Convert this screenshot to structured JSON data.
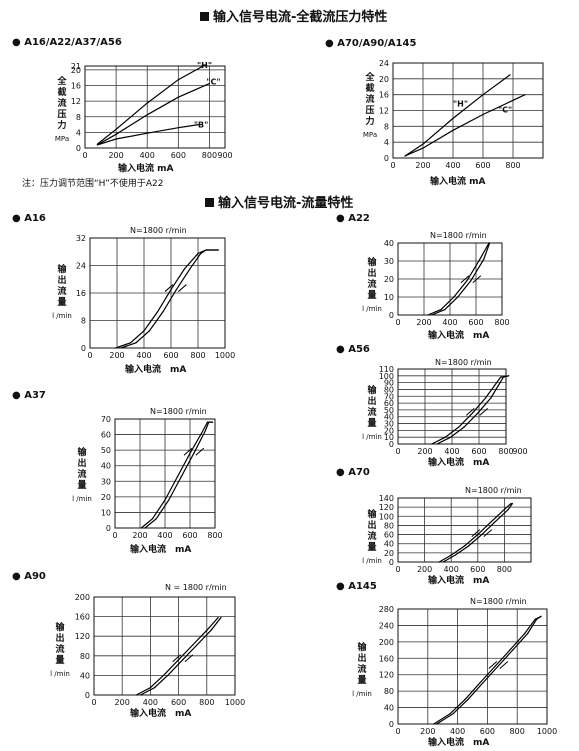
{
  "pressure_section": {
    "title": "输入信号电流-全截流压力特性"
  },
  "flow_section": {
    "title": "输入信号电流-流量特性"
  },
  "pressure_note": "注：压力调节范围“H”不使用于A22",
  "chart_data": [
    {
      "id": "p1",
      "type": "line",
      "title": "A16/A22/A37/A56",
      "ylabel_chars": [
        "全",
        "截",
        "流",
        "压",
        "力"
      ],
      "ylabel_unit": "MPa",
      "xlabel": "输入电流 mA",
      "xlim": [
        0,
        900
      ],
      "ylim": [
        0,
        21
      ],
      "x_ticks": [
        0,
        200,
        400,
        600,
        800,
        900
      ],
      "y_ticks": [
        0,
        4,
        8,
        12,
        16,
        20,
        21
      ],
      "grid": true,
      "series": [
        {
          "name": "\"H\"",
          "x": [
            80,
            200,
            400,
            600,
            760
          ],
          "y": [
            1,
            4.8,
            11.5,
            17.5,
            21
          ]
        },
        {
          "name": "\"C\"",
          "x": [
            80,
            200,
            400,
            600,
            800
          ],
          "y": [
            0.8,
            3.5,
            8.5,
            13,
            16.5
          ]
        },
        {
          "name": "\"B\"",
          "x": [
            80,
            200,
            400,
            600,
            730
          ],
          "y": [
            0.8,
            2.3,
            3.8,
            5.2,
            6
          ]
        }
      ]
    },
    {
      "id": "p2",
      "type": "line",
      "title": "A70/A90/A145",
      "ylabel_chars": [
        "全",
        "截",
        "流",
        "压",
        "力"
      ],
      "ylabel_unit": "MPa",
      "xlabel": "输入电流 mA",
      "xlim": [
        0,
        1000
      ],
      "ylim": [
        0,
        24
      ],
      "x_ticks": [
        0,
        200,
        400,
        600,
        800
      ],
      "y_ticks": [
        0,
        4,
        8,
        12,
        16,
        20,
        24
      ],
      "grid": true,
      "series": [
        {
          "name": "\"H\"",
          "x": [
            80,
            200,
            400,
            600,
            780
          ],
          "y": [
            0.5,
            3.5,
            10,
            16,
            21
          ]
        },
        {
          "name": "\"C\"",
          "x": [
            80,
            200,
            400,
            600,
            880
          ],
          "y": [
            0.5,
            2.5,
            7,
            11,
            16
          ]
        }
      ]
    },
    {
      "id": "f1",
      "type": "line",
      "title": "A16",
      "speed": "N=1800 r/min",
      "ylabel_chars": [
        "输",
        "出",
        "流",
        "量"
      ],
      "ylabel_unit": "l /min",
      "xlabel": "输入电流　mA",
      "xlim": [
        0,
        1000
      ],
      "ylim": [
        0,
        32
      ],
      "x_ticks": [
        0,
        200,
        400,
        600,
        800,
        1000
      ],
      "y_ticks": [
        0,
        8,
        16,
        24,
        32
      ],
      "grid": true,
      "series": [
        {
          "name": "",
          "x": [
            190,
            300,
            400,
            500,
            600,
            700,
            800,
            860,
            950
          ],
          "y": [
            0,
            1.5,
            5,
            10.5,
            17,
            23,
            27.5,
            28.5,
            28.5
          ]
        },
        {
          "name": "",
          "x": [
            230,
            340,
            440,
            540,
            640,
            740,
            820,
            860,
            950
          ],
          "y": [
            0,
            1.5,
            5,
            10.5,
            17,
            23,
            27.5,
            28.5,
            28.5
          ]
        }
      ]
    },
    {
      "id": "f2",
      "type": "line",
      "title": "A22",
      "speed": "N=1800 r/min",
      "ylabel_chars": [
        "输",
        "出",
        "流",
        "量"
      ],
      "ylabel_unit": "l /min",
      "xlabel": "输入电流　mA",
      "xlim": [
        0,
        800
      ],
      "ylim": [
        0,
        40
      ],
      "x_ticks": [
        0,
        200,
        400,
        600,
        800
      ],
      "y_ticks": [
        0,
        10,
        20,
        30,
        40
      ],
      "grid": true,
      "series": [
        {
          "name": "",
          "x": [
            230,
            330,
            430,
            530,
            630,
            700
          ],
          "y": [
            0,
            3,
            10,
            19,
            31,
            40
          ]
        },
        {
          "name": "",
          "x": [
            260,
            360,
            460,
            560,
            660,
            705
          ],
          "y": [
            0,
            3,
            10,
            19,
            31,
            40
          ]
        }
      ]
    },
    {
      "id": "f3",
      "type": "line",
      "title": "A56",
      "speed": "N=1800 r/min",
      "ylabel_chars": [
        "输",
        "出",
        "流",
        "量"
      ],
      "ylabel_unit": "l /min",
      "xlabel": "输入电流　mA",
      "xlim": [
        0,
        800
      ],
      "ylim": [
        0,
        110
      ],
      "x_ticks": [
        0,
        200,
        400,
        600,
        800,
        900
      ],
      "y_ticks": [
        0,
        10,
        20,
        30,
        40,
        50,
        60,
        70,
        80,
        90,
        100,
        110
      ],
      "grid": true,
      "series": [
        {
          "name": "",
          "x": [
            250,
            350,
            450,
            550,
            650,
            760,
            820
          ],
          "y": [
            0,
            10,
            25,
            45,
            68,
            98,
            100
          ]
        },
        {
          "name": "",
          "x": [
            290,
            390,
            490,
            590,
            690,
            780,
            820
          ],
          "y": [
            0,
            10,
            25,
            45,
            68,
            98,
            100
          ]
        }
      ]
    },
    {
      "id": "f4",
      "type": "line",
      "title": "A37",
      "speed": "N=1800 r/min",
      "ylabel_chars": [
        "输",
        "出",
        "流",
        "量"
      ],
      "ylabel_unit": "l /min",
      "xlabel": "输入电流　mA",
      "xlim": [
        0,
        800
      ],
      "ylim": [
        0,
        70
      ],
      "x_ticks": [
        0,
        200,
        400,
        600,
        800
      ],
      "y_ticks": [
        0,
        10,
        20,
        30,
        40,
        50,
        60,
        70
      ],
      "grid": true,
      "series": [
        {
          "name": "",
          "x": [
            210,
            300,
            400,
            500,
            600,
            700,
            740,
            780
          ],
          "y": [
            0,
            6,
            18,
            33,
            48,
            62,
            68,
            68
          ]
        },
        {
          "name": "",
          "x": [
            240,
            330,
            430,
            530,
            630,
            720,
            750,
            780
          ],
          "y": [
            0,
            6,
            18,
            33,
            48,
            62,
            68,
            68
          ]
        }
      ]
    },
    {
      "id": "f5",
      "type": "line",
      "title": "A70",
      "speed": "N=1800 r/min",
      "ylabel_chars": [
        "输",
        "出",
        "流",
        "量"
      ],
      "ylabel_unit": "l /min",
      "xlabel": "输入电流　mA",
      "xlim": [
        0,
        1000
      ],
      "ylim": [
        0,
        140
      ],
      "x_ticks": [
        0,
        200,
        400,
        600,
        800
      ],
      "y_ticks": [
        0,
        20,
        40,
        60,
        80,
        100,
        120,
        140
      ],
      "grid": true,
      "series": [
        {
          "name": "",
          "x": [
            310,
            400,
            500,
            600,
            700,
            800,
            850
          ],
          "y": [
            0,
            15,
            35,
            60,
            88,
            115,
            128
          ]
        },
        {
          "name": "",
          "x": [
            340,
            430,
            530,
            630,
            730,
            830,
            860
          ],
          "y": [
            0,
            15,
            35,
            60,
            88,
            115,
            128
          ]
        }
      ]
    },
    {
      "id": "f6",
      "type": "line",
      "title": "A90",
      "speed": "N = 1800 r/min",
      "ylabel_chars": [
        "输",
        "出",
        "流",
        "量"
      ],
      "ylabel_unit": "l /min",
      "xlabel": "输入电流　mA",
      "xlim": [
        0,
        1000
      ],
      "ylim": [
        0,
        200
      ],
      "x_ticks": [
        0,
        200,
        400,
        600,
        800,
        1000
      ],
      "y_ticks": [
        0,
        40,
        80,
        120,
        160,
        200
      ],
      "grid": true,
      "series": [
        {
          "name": "",
          "x": [
            300,
            400,
            500,
            600,
            700,
            800,
            880
          ],
          "y": [
            0,
            15,
            42,
            72,
            102,
            132,
            158
          ]
        },
        {
          "name": "",
          "x": [
            330,
            430,
            530,
            630,
            730,
            830,
            900
          ],
          "y": [
            0,
            15,
            42,
            72,
            102,
            132,
            158
          ]
        }
      ]
    },
    {
      "id": "f7",
      "type": "line",
      "title": "A145",
      "speed": "N=1800 r/min",
      "ylabel_chars": [
        "输",
        "出",
        "流",
        "量"
      ],
      "ylabel_unit": "l /min",
      "xlabel": "输入电流　mA",
      "xlim": [
        0,
        1000
      ],
      "ylim": [
        0,
        280
      ],
      "x_ticks": [
        0,
        200,
        400,
        600,
        800,
        1000
      ],
      "y_ticks": [
        0,
        40,
        80,
        120,
        160,
        200,
        240,
        280
      ],
      "grid": true,
      "series": [
        {
          "name": "",
          "x": [
            240,
            350,
            450,
            550,
            650,
            750,
            850,
            920,
            960
          ],
          "y": [
            0,
            25,
            60,
            100,
            140,
            180,
            220,
            255,
            262
          ]
        },
        {
          "name": "",
          "x": [
            260,
            370,
            470,
            570,
            670,
            770,
            870,
            930,
            960
          ],
          "y": [
            0,
            25,
            60,
            100,
            140,
            180,
            220,
            255,
            262
          ]
        }
      ]
    }
  ]
}
